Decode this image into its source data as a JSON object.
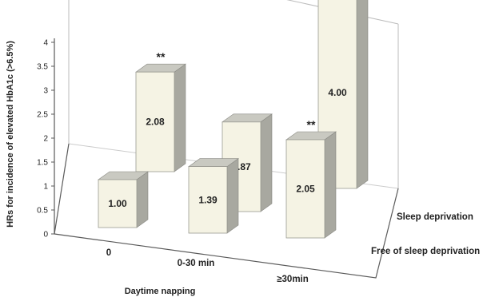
{
  "chart_data": {
    "type": "bar",
    "subtype": "3d-grouped",
    "title": "",
    "xlabel": "Daytime napping",
    "ylabel": "HRs for incidence of elevated HbA1c (>6.5%)",
    "ylim": [
      0,
      4
    ],
    "yticks": [
      "0",
      "0.5",
      "1",
      "1.5",
      "2",
      "2.5",
      "3",
      "3.5",
      "4"
    ],
    "categories": [
      "0",
      "0-30 min",
      "≥30min"
    ],
    "series": [
      {
        "name": "Free of sleep deprivation",
        "values": [
          1.0,
          1.39,
          2.05
        ],
        "labels": [
          "1.00",
          "1.39",
          "2.05"
        ],
        "annotations": [
          "",
          "",
          "**"
        ]
      },
      {
        "name": "Sleep deprivation",
        "values": [
          2.08,
          1.87,
          4.0
        ],
        "labels": [
          "2.08",
          "1.87",
          "4.00"
        ],
        "annotations": [
          "**",
          "",
          "**"
        ]
      }
    ],
    "grid": false,
    "colors": {
      "bar_front": "#f5f3e4",
      "bar_top": "#c9c9c1",
      "bar_side": "#a8a8a0",
      "axis": "#5a5a5a"
    }
  }
}
